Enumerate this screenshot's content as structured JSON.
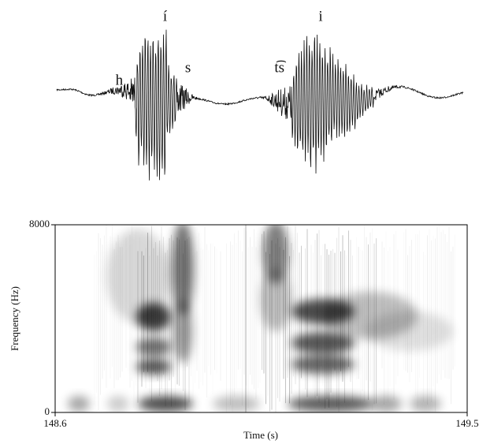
{
  "chart_data": {
    "type": "spectrogram",
    "xlabel": "Time (s)",
    "ylabel": "Frequency (Hz)",
    "xlim": [
      148.6,
      149.5
    ],
    "xticks": [
      148.6,
      149.5
    ],
    "ylim": [
      0,
      8000
    ],
    "yticks": [
      0,
      8000
    ],
    "annotations": [
      {
        "text": "h",
        "x": 148.74
      },
      {
        "text": "í",
        "x": 148.84
      },
      {
        "text": "s",
        "x": 148.89
      },
      {
        "text": "t͡s",
        "x": 149.09
      },
      {
        "text": "i",
        "x": 149.18
      }
    ]
  }
}
